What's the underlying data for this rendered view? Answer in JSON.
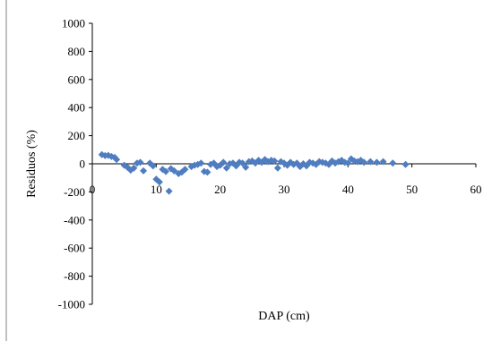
{
  "chart_data": {
    "type": "scatter",
    "title": "",
    "xlabel": "DAP (cm)",
    "ylabel": "Residuos  (%)",
    "xlim": [
      0,
      60
    ],
    "ylim": [
      -1000,
      1000
    ],
    "x_ticks": [
      0,
      10,
      20,
      30,
      40,
      50,
      60
    ],
    "y_ticks": [
      1000,
      800,
      600,
      400,
      200,
      0,
      -200,
      -400,
      -600,
      -800,
      -1000
    ],
    "x_tick_labels": [
      "0",
      "10",
      "20",
      "30",
      "40",
      "50",
      "60"
    ],
    "y_tick_labels": [
      "1000",
      "800",
      "600",
      "400",
      "200",
      "0",
      "-200",
      "-400",
      "-600",
      "-800",
      "-1000"
    ],
    "grid": false,
    "legend": "none",
    "marker": "diamond",
    "color": "#4F7DC0",
    "series": [
      {
        "points": [
          [
            1.5,
            65
          ],
          [
            2.0,
            58
          ],
          [
            2.5,
            60
          ],
          [
            3.0,
            52
          ],
          [
            3.5,
            45
          ],
          [
            3.8,
            30
          ],
          [
            5.0,
            -10
          ],
          [
            5.5,
            -25
          ],
          [
            6.0,
            -45
          ],
          [
            6.5,
            -30
          ],
          [
            7.0,
            5
          ],
          [
            7.5,
            10
          ],
          [
            8.0,
            -50
          ],
          [
            9.0,
            5
          ],
          [
            9.5,
            -15
          ],
          [
            10.0,
            -110
          ],
          [
            10.5,
            -130
          ],
          [
            11.0,
            -40
          ],
          [
            11.5,
            -55
          ],
          [
            12.0,
            -195
          ],
          [
            12.3,
            -35
          ],
          [
            12.8,
            -50
          ],
          [
            13.5,
            -70
          ],
          [
            14.0,
            -60
          ],
          [
            14.5,
            -40
          ],
          [
            15.5,
            -20
          ],
          [
            16.0,
            -10
          ],
          [
            16.5,
            -5
          ],
          [
            17.0,
            5
          ],
          [
            17.5,
            -55
          ],
          [
            18.0,
            -60
          ],
          [
            18.5,
            -5
          ],
          [
            19.0,
            5
          ],
          [
            19.5,
            -20
          ],
          [
            20.0,
            -10
          ],
          [
            20.5,
            10
          ],
          [
            21.0,
            -30
          ],
          [
            21.5,
            0
          ],
          [
            22.0,
            5
          ],
          [
            22.5,
            -15
          ],
          [
            23.0,
            10
          ],
          [
            23.5,
            5
          ],
          [
            24.0,
            -25
          ],
          [
            24.5,
            15
          ],
          [
            25.0,
            20
          ],
          [
            25.5,
            5
          ],
          [
            26.0,
            25
          ],
          [
            26.5,
            10
          ],
          [
            27.0,
            30
          ],
          [
            27.5,
            15
          ],
          [
            28.0,
            25
          ],
          [
            28.5,
            20
          ],
          [
            29.0,
            -30
          ],
          [
            29.5,
            15
          ],
          [
            30.0,
            5
          ],
          [
            30.5,
            -10
          ],
          [
            31.0,
            10
          ],
          [
            31.5,
            -5
          ],
          [
            32.0,
            5
          ],
          [
            32.5,
            -20
          ],
          [
            33.0,
            0
          ],
          [
            33.5,
            -15
          ],
          [
            34.0,
            10
          ],
          [
            34.5,
            5
          ],
          [
            35.0,
            -5
          ],
          [
            35.5,
            15
          ],
          [
            36.0,
            10
          ],
          [
            36.5,
            5
          ],
          [
            37.0,
            -5
          ],
          [
            37.5,
            20
          ],
          [
            38.0,
            5
          ],
          [
            38.5,
            15
          ],
          [
            39.0,
            25
          ],
          [
            39.5,
            10
          ],
          [
            40.0,
            5
          ],
          [
            40.5,
            35
          ],
          [
            41.0,
            20
          ],
          [
            41.5,
            15
          ],
          [
            42.0,
            25
          ],
          [
            42.5,
            10
          ],
          [
            43.5,
            15
          ],
          [
            44.5,
            10
          ],
          [
            45.5,
            15
          ],
          [
            47.0,
            5
          ],
          [
            49.0,
            -5
          ]
        ]
      }
    ]
  }
}
